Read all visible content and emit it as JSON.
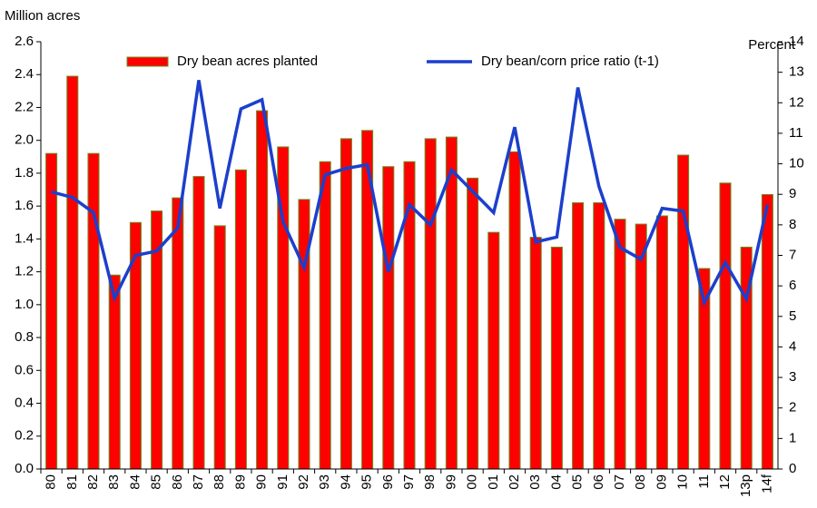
{
  "chart_data": {
    "type": "bar",
    "y_label": "Million acres",
    "y2_label": "Percent",
    "categories": [
      "80",
      "81",
      "82",
      "83",
      "84",
      "85",
      "86",
      "87",
      "88",
      "89",
      "90",
      "91",
      "92",
      "93",
      "94",
      "95",
      "96",
      "97",
      "98",
      "99",
      "00",
      "01",
      "02",
      "03",
      "04",
      "05",
      "06",
      "07",
      "08",
      "09",
      "10",
      "11",
      "12",
      "13p",
      "14f"
    ],
    "series": [
      {
        "name": "Dry bean acres planted",
        "type": "bar",
        "color": "#ff0000",
        "edge_color": "#6b8e23",
        "values": [
          1.92,
          2.39,
          1.92,
          1.18,
          1.5,
          1.57,
          1.65,
          1.78,
          1.48,
          1.82,
          2.18,
          1.96,
          1.64,
          1.87,
          2.01,
          2.06,
          1.84,
          1.87,
          2.01,
          2.02,
          1.77,
          1.44,
          1.93,
          1.41,
          1.35,
          1.62,
          1.62,
          1.52,
          1.49,
          1.54,
          1.91,
          1.22,
          1.74,
          1.35,
          1.67
        ]
      },
      {
        "name": "Dry bean/corn price ratio (t-1)",
        "type": "line",
        "axis": "y2",
        "color": "#1c3fcc",
        "values": [
          9.08,
          8.9,
          8.4,
          5.6,
          7.0,
          7.14,
          7.9,
          12.74,
          8.54,
          11.8,
          12.1,
          8.1,
          6.6,
          9.64,
          9.85,
          9.97,
          6.46,
          8.66,
          8.0,
          9.8,
          9.1,
          8.4,
          11.2,
          7.44,
          7.6,
          12.5,
          9.26,
          7.26,
          6.87,
          8.54,
          8.45,
          5.45,
          6.76,
          5.57,
          8.66
        ]
      }
    ],
    "ylim": [
      0,
      2.6
    ],
    "yticks": [
      {
        "value": 0,
        "label": "0.0"
      },
      0.2,
      0.4,
      0.6,
      0.8,
      {
        "value": 1,
        "label": "1.0"
      },
      1.2,
      1.4,
      1.6,
      1.8,
      {
        "value": 2,
        "label": "2.0"
      },
      2.2,
      2.4,
      2.6
    ],
    "y2lim": [
      0,
      14
    ],
    "y2ticks": [
      0,
      1,
      2,
      3,
      4,
      5,
      6,
      7,
      8,
      9,
      10,
      11,
      12,
      13,
      14
    ],
    "grid": false,
    "legend": "top"
  }
}
